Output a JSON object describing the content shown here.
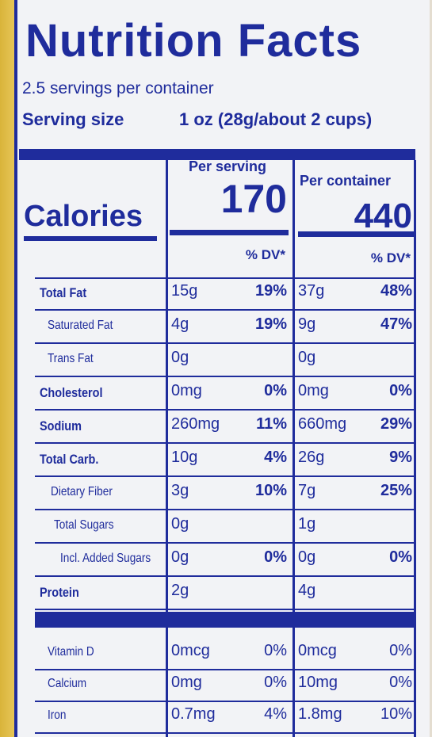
{
  "header": {
    "title": "Nutrition Facts",
    "servings": "2.5 servings per container",
    "serving_size_label": "Serving size",
    "serving_size": "1 oz (28g/about 2 cups)"
  },
  "columns": {
    "per_serving": "Per serving",
    "per_container": "Per container",
    "dv_serving": "% DV*",
    "dv_container": "% DV*"
  },
  "calories": {
    "label": "Calories",
    "per_serving": 170,
    "per_container": 440
  },
  "rows": [
    {
      "name": "Total Fat",
      "serving": "15g",
      "serving_dv": "19%",
      "container": "37g",
      "container_dv": "48%"
    },
    {
      "name": "Saturated Fat",
      "serving": "4g",
      "serving_dv": "19%",
      "container": "9g",
      "container_dv": "47%"
    },
    {
      "name": "Trans Fat",
      "serving": "0g",
      "container": "0g"
    },
    {
      "name": "Cholesterol",
      "serving": "0mg",
      "serving_dv": "0%",
      "container": "0mg",
      "container_dv": "0%"
    },
    {
      "name": "Sodium",
      "serving": "260mg",
      "serving_dv": "11%",
      "container": "660mg",
      "container_dv": "29%"
    },
    {
      "name": "Total Carb.",
      "serving": "10g",
      "serving_dv": "4%",
      "container": "26g",
      "container_dv": "9%"
    },
    {
      "name": "Dietary Fiber",
      "serving": "3g",
      "serving_dv": "10%",
      "container": "7g",
      "container_dv": "25%"
    },
    {
      "name": "Total Sugars",
      "serving": "0g",
      "container": "1g"
    },
    {
      "name": "Incl. Added Sugars",
      "serving": "0g",
      "serving_dv": "0%",
      "container": "0g",
      "container_dv": "0%"
    },
    {
      "name": "Protein",
      "serving": "2g",
      "container": "4g"
    }
  ],
  "vitamins": [
    {
      "name": "Vitamin D",
      "serving": "0mcg",
      "serving_dv": "0%",
      "container": "0mcg",
      "container_dv": "0%"
    },
    {
      "name": "Calcium",
      "serving": "0mg",
      "serving_dv": "0%",
      "container": "10mg",
      "container_dv": "0%"
    },
    {
      "name": "Iron",
      "serving": "0.7mg",
      "serving_dv": "4%",
      "container": "1.8mg",
      "container_dv": "10%"
    }
  ]
}
